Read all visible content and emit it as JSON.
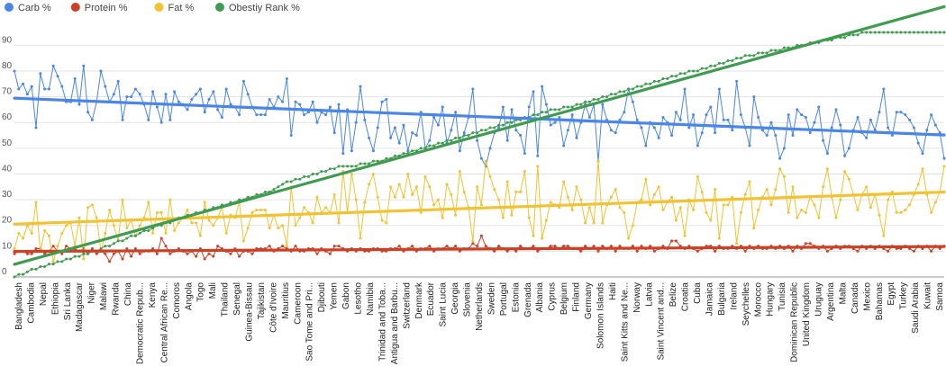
{
  "chart_data": {
    "type": "line",
    "title": "",
    "xlabel": "",
    "ylabel": "",
    "ylim": [
      0,
      95
    ],
    "yticks": [
      0,
      10,
      20,
      30,
      40,
      50,
      60,
      70,
      80,
      90
    ],
    "grid": "horizontal",
    "legend_position": "top-left",
    "trendlines": true,
    "series": [
      {
        "name": "Carb %",
        "color": "#4a86e8",
        "values": [
          80,
          73,
          75,
          71,
          74,
          58,
          79,
          73,
          73,
          82,
          78,
          74,
          68,
          68,
          77,
          67,
          82,
          64,
          61,
          68,
          80,
          74,
          68,
          71,
          76,
          61,
          70,
          70,
          73,
          71,
          67,
          61,
          72,
          66,
          60,
          71,
          61,
          72,
          68,
          67,
          65,
          69,
          71,
          73,
          64,
          69,
          72,
          65,
          62,
          73,
          67,
          66,
          63,
          76,
          71,
          66,
          63,
          63,
          63,
          69,
          66,
          70,
          68,
          77,
          55,
          68,
          67,
          63,
          64,
          68,
          60,
          64,
          63,
          66,
          56,
          67,
          48,
          65,
          49,
          60,
          74,
          61,
          54,
          49,
          58,
          68,
          69,
          54,
          58,
          52,
          59,
          49,
          56,
          55,
          64,
          50,
          53,
          62,
          59,
          66,
          52,
          57,
          64,
          49,
          56,
          62,
          73,
          53,
          46,
          43,
          50,
          56,
          58,
          66,
          53,
          65,
          57,
          55,
          48,
          66,
          72,
          47,
          74,
          67,
          59,
          60,
          62,
          51,
          57,
          63,
          54,
          60,
          67,
          62,
          67,
          45,
          67,
          61,
          57,
          56,
          61,
          64,
          73,
          68,
          61,
          58,
          51,
          60,
          58,
          54,
          62,
          60,
          55,
          64,
          61,
          73,
          58,
          63,
          51,
          56,
          63,
          66,
          56,
          73,
          61,
          61,
          57,
          76,
          63,
          58,
          51,
          70,
          62,
          57,
          55,
          60,
          55,
          46,
          50,
          63,
          55,
          65,
          63,
          62,
          56,
          60,
          66,
          53,
          48,
          58,
          65,
          59,
          47,
          50,
          57,
          62,
          56,
          54,
          61,
          57,
          64,
          73,
          58,
          55,
          64,
          64,
          63,
          61,
          58,
          52,
          48,
          57,
          63,
          59,
          56,
          46
        ]
      },
      {
        "name": "Protein %",
        "color": "#cc4125",
        "values": [
          9,
          10,
          10,
          9,
          9,
          11,
          11,
          9,
          10,
          12,
          10,
          9,
          12,
          11,
          11,
          10,
          11,
          9,
          11,
          9,
          10,
          9,
          6,
          9,
          10,
          7,
          11,
          8,
          11,
          9,
          10,
          10,
          11,
          9,
          15,
          12,
          9,
          10,
          11,
          10,
          9,
          10,
          8,
          11,
          7,
          9,
          8,
          12,
          11,
          10,
          9,
          11,
          8,
          10,
          10,
          9,
          11,
          11,
          11,
          12,
          10,
          11,
          12,
          11,
          10,
          12,
          10,
          10,
          11,
          11,
          9,
          11,
          10,
          9,
          12,
          12,
          11,
          10,
          11,
          10,
          11,
          10,
          10,
          11,
          11,
          10,
          10,
          11,
          11,
          12,
          10,
          11,
          12,
          10,
          11,
          11,
          12,
          10,
          11,
          11,
          12,
          11,
          12,
          10,
          11,
          11,
          13,
          12,
          16,
          12,
          11,
          10,
          12,
          11,
          10,
          11,
          10,
          12,
          11,
          11,
          12,
          10,
          11,
          11,
          12,
          12,
          11,
          12,
          12,
          11,
          11,
          10,
          12,
          11,
          12,
          10,
          12,
          11,
          12,
          10,
          12,
          11,
          11,
          12,
          10,
          12,
          11,
          12,
          10,
          11,
          12,
          11,
          14,
          14,
          12,
          11,
          12,
          11,
          10,
          11,
          12,
          12,
          10,
          12,
          11,
          11,
          12,
          11,
          12,
          10,
          12,
          11,
          12,
          11,
          11,
          12,
          11,
          12,
          11,
          12,
          10,
          12,
          11,
          13,
          13,
          12,
          11,
          12,
          10,
          11,
          12,
          11,
          12,
          12,
          11,
          10,
          12,
          11,
          12,
          11,
          12,
          11,
          10,
          12,
          11,
          11,
          12,
          11,
          10,
          12,
          11,
          12,
          10,
          12,
          11,
          12
        ]
      },
      {
        "name": "Fat %",
        "color": "#f1c232",
        "values": [
          11,
          17,
          15,
          20,
          17,
          29,
          10,
          18,
          16,
          6,
          12,
          17,
          20,
          21,
          12,
          23,
          7,
          27,
          28,
          23,
          10,
          17,
          26,
          20,
          14,
          30,
          19,
          22,
          16,
          20,
          23,
          29,
          17,
          25,
          25,
          17,
          30,
          18,
          21,
          23,
          26,
          21,
          21,
          16,
          29,
          22,
          20,
          23,
          27,
          17,
          24,
          23,
          29,
          14,
          19,
          25,
          26,
          26,
          26,
          19,
          24,
          19,
          20,
          12,
          35,
          20,
          23,
          27,
          25,
          21,
          31,
          25,
          27,
          25,
          32,
          21,
          41,
          25,
          40,
          30,
          15,
          29,
          36,
          40,
          31,
          22,
          21,
          35,
          31,
          36,
          31,
          40,
          32,
          35,
          25,
          39,
          35,
          28,
          30,
          23,
          36,
          32,
          24,
          41,
          33,
          27,
          14,
          35,
          28,
          45,
          39,
          34,
          30,
          23,
          37,
          24,
          33,
          33,
          41,
          23,
          16,
          43,
          15,
          22,
          29,
          28,
          27,
          37,
          31,
          26,
          35,
          30,
          21,
          27,
          21,
          45,
          21,
          28,
          31,
          34,
          27,
          25,
          15,
          20,
          29,
          30,
          38,
          28,
          32,
          35,
          26,
          29,
          31,
          22,
          27,
          16,
          30,
          26,
          39,
          33,
          25,
          22,
          34,
          15,
          28,
          28,
          31,
          13,
          25,
          32,
          37,
          19,
          26,
          31,
          34,
          28,
          34,
          42,
          39,
          25,
          35,
          23,
          26,
          25,
          31,
          28,
          23,
          35,
          42,
          31,
          23,
          30,
          41,
          38,
          32,
          26,
          32,
          35,
          27,
          32,
          24,
          16,
          30,
          33,
          25,
          25,
          26,
          28,
          32,
          36,
          42,
          32,
          25,
          29,
          33,
          43
        ]
      },
      {
        "name": "Obestiy Rank %",
        "color": "#3e9b4f",
        "values": [
          0,
          1,
          1,
          2,
          3,
          3,
          4,
          4,
          5,
          5,
          6,
          6,
          7,
          7,
          8,
          8,
          9,
          9,
          10,
          10,
          11,
          12,
          12,
          13,
          14,
          14,
          15,
          16,
          16,
          17,
          18,
          18,
          19,
          20,
          20,
          21,
          21,
          22,
          23,
          23,
          24,
          24,
          25,
          25,
          26,
          26,
          27,
          27,
          28,
          28,
          29,
          29,
          30,
          30,
          31,
          31,
          32,
          32,
          33,
          33,
          34,
          35,
          36,
          37,
          37,
          38,
          38,
          39,
          39,
          40,
          40,
          41,
          41,
          42,
          42,
          43,
          43,
          43,
          43,
          43,
          44,
          44,
          44,
          45,
          45,
          45,
          46,
          46,
          47,
          47,
          48,
          48,
          49,
          49,
          50,
          50,
          51,
          51,
          52,
          52,
          53,
          53,
          54,
          54,
          55,
          55,
          56,
          56,
          57,
          57,
          58,
          58,
          59,
          59,
          60,
          60,
          61,
          61,
          62,
          62,
          63,
          63,
          64,
          64,
          65,
          65,
          65,
          66,
          66,
          66,
          67,
          67,
          68,
          68,
          69,
          69,
          70,
          70,
          71,
          71,
          72,
          72,
          73,
          73,
          74,
          74,
          75,
          75,
          76,
          76,
          77,
          77,
          78,
          78,
          79,
          79,
          80,
          80,
          80,
          81,
          81,
          82,
          82,
          83,
          83,
          84,
          84,
          85,
          85,
          86,
          86,
          86,
          87,
          87,
          87,
          88,
          88,
          88,
          89,
          89,
          89,
          90,
          90,
          90,
          91,
          91,
          91,
          92,
          92,
          92,
          93,
          93,
          93,
          94,
          94,
          94,
          95,
          95,
          95,
          95,
          95,
          95,
          95,
          95,
          95,
          95,
          95,
          95,
          95,
          95,
          95,
          95,
          95,
          95,
          95,
          95
        ]
      }
    ],
    "x_labels": [
      "Bangladesh",
      "Cambodia",
      "Nepal",
      "Ethiopia",
      "Sri Lanka",
      "Madagascar",
      "Niger",
      "Malawi",
      "Rwanda",
      "China",
      "Democratic Repub...",
      "Kenya",
      "Central African Re...",
      "Comoros",
      "Angola",
      "Togo",
      "Mali",
      "Thailand",
      "Senegal",
      "Guinea-Bissau",
      "Tajikistan",
      "Côte d'Ivoire",
      "Mauritius",
      "Cameroon",
      "Sao Tome and Pri...",
      "Djibouti",
      "Yemen",
      "Gabon",
      "Lesotho",
      "Namibia",
      "Trinidad and Toba...",
      "Antigua and Barbu...",
      "Switzerland",
      "Denmark",
      "Ecuador",
      "Saint Lucia",
      "Georgia",
      "Slovenia",
      "Netherlands",
      "Sweden",
      "Portugal",
      "Estonia",
      "Grenada",
      "Albania",
      "Cyprus",
      "Belgium",
      "Finland",
      "Germany",
      "Solomon Islands",
      "Haiti",
      "Saint Kitts and Ne...",
      "Norway",
      "Latvia",
      "Saint Vincent and...",
      "Belize",
      "Croatia",
      "Cuba",
      "Jamaica",
      "Bulgaria",
      "Ireland",
      "Seychelles",
      "Morocco",
      "Hungary",
      "Tunisia",
      "Dominican Republic",
      "United Kingdom",
      "Uruguay",
      "Argentina",
      "Malta",
      "Canada",
      "Mexico",
      "Bahamas",
      "Egypt",
      "Turkey",
      "Saudi Arabia",
      "Kuwait",
      "Samoa"
    ]
  }
}
